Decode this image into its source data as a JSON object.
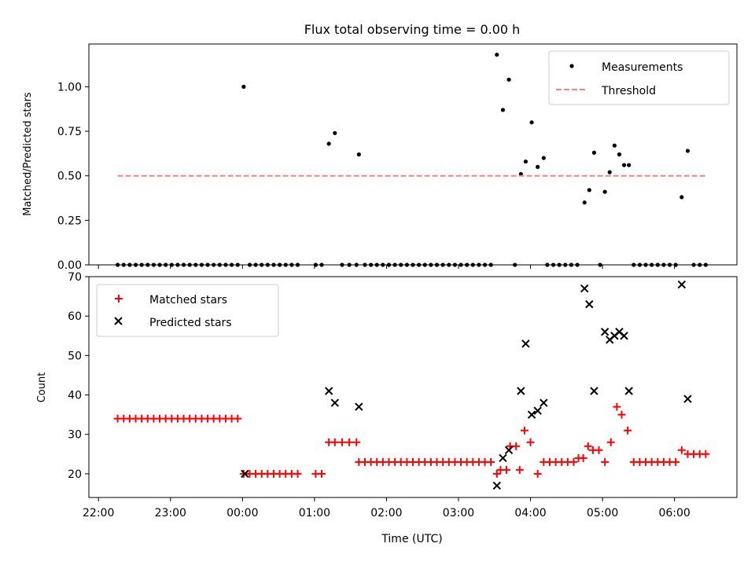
{
  "figure": {
    "title": "Flux total observing time = 0.00 h",
    "xlabel": "Time (UTC)"
  },
  "chart_data": [
    {
      "type": "scatter",
      "panel": "top",
      "ylabel": "Matched/Predicted stars",
      "xlim": [
        "21:52",
        "06:52"
      ],
      "ylim": [
        0,
        1.24
      ],
      "y_ticks": [
        "0.00",
        "0.25",
        "0.50",
        "0.75",
        "1.00"
      ],
      "x_ticks": [
        "22:00",
        "23:00",
        "00:00",
        "01:00",
        "02:00",
        "03:00",
        "04:00",
        "05:00",
        "06:00"
      ],
      "legend_position": "top-right",
      "grid": false,
      "series": [
        {
          "name": "Measurements",
          "color": "#000000",
          "marker": "dot",
          "points": [
            [
              "22:16",
              0
            ],
            [
              "22:21",
              0
            ],
            [
              "22:26",
              0
            ],
            [
              "22:31",
              0
            ],
            [
              "22:36",
              0
            ],
            [
              "22:41",
              0
            ],
            [
              "22:46",
              0
            ],
            [
              "22:51",
              0
            ],
            [
              "22:56",
              0
            ],
            [
              "23:01",
              0
            ],
            [
              "23:06",
              0
            ],
            [
              "23:11",
              0
            ],
            [
              "23:16",
              0
            ],
            [
              "23:21",
              0
            ],
            [
              "23:26",
              0
            ],
            [
              "23:31",
              0
            ],
            [
              "23:36",
              0
            ],
            [
              "23:41",
              0
            ],
            [
              "23:46",
              0
            ],
            [
              "23:51",
              0
            ],
            [
              "23:56",
              0
            ],
            [
              "00:01",
              1.0
            ],
            [
              "00:06",
              0
            ],
            [
              "00:11",
              0
            ],
            [
              "00:16",
              0
            ],
            [
              "00:21",
              0
            ],
            [
              "00:26",
              0
            ],
            [
              "00:31",
              0
            ],
            [
              "00:36",
              0
            ],
            [
              "00:41",
              0
            ],
            [
              "00:46",
              0
            ],
            [
              "01:01",
              0
            ],
            [
              "01:06",
              0
            ],
            [
              "01:12",
              0.68
            ],
            [
              "01:17",
              0.74
            ],
            [
              "01:23",
              0
            ],
            [
              "01:29",
              0
            ],
            [
              "01:35",
              0
            ],
            [
              "01:37",
              0.62
            ],
            [
              "01:42",
              0
            ],
            [
              "01:47",
              0
            ],
            [
              "01:52",
              0
            ],
            [
              "01:57",
              0
            ],
            [
              "02:02",
              0
            ],
            [
              "02:07",
              0
            ],
            [
              "02:12",
              0
            ],
            [
              "02:17",
              0
            ],
            [
              "02:22",
              0
            ],
            [
              "02:27",
              0
            ],
            [
              "02:32",
              0
            ],
            [
              "02:37",
              0
            ],
            [
              "02:42",
              0
            ],
            [
              "02:47",
              0
            ],
            [
              "02:52",
              0
            ],
            [
              "02:57",
              0
            ],
            [
              "03:02",
              0
            ],
            [
              "03:07",
              0
            ],
            [
              "03:12",
              0
            ],
            [
              "03:17",
              0
            ],
            [
              "03:22",
              0
            ],
            [
              "03:27",
              0
            ],
            [
              "03:32",
              1.18
            ],
            [
              "03:37",
              0.87
            ],
            [
              "03:42",
              1.04
            ],
            [
              "03:47",
              0
            ],
            [
              "03:52",
              0.51
            ],
            [
              "03:56",
              0.58
            ],
            [
              "04:01",
              0.8
            ],
            [
              "04:06",
              0.55
            ],
            [
              "04:11",
              0.6
            ],
            [
              "04:14",
              0
            ],
            [
              "04:19",
              0
            ],
            [
              "04:24",
              0
            ],
            [
              "04:29",
              0
            ],
            [
              "04:34",
              0
            ],
            [
              "04:39",
              0
            ],
            [
              "04:45",
              0.35
            ],
            [
              "04:49",
              0.42
            ],
            [
              "04:53",
              0.63
            ],
            [
              "04:58",
              0
            ],
            [
              "05:02",
              0.41
            ],
            [
              "05:06",
              0.52
            ],
            [
              "05:10",
              0.67
            ],
            [
              "05:14",
              0.62
            ],
            [
              "05:18",
              0.56
            ],
            [
              "05:22",
              0.56
            ],
            [
              "05:26",
              0
            ],
            [
              "05:31",
              0
            ],
            [
              "05:36",
              0
            ],
            [
              "05:41",
              0
            ],
            [
              "05:46",
              0
            ],
            [
              "05:51",
              0
            ],
            [
              "05:56",
              0
            ],
            [
              "06:01",
              0
            ],
            [
              "06:06",
              0.38
            ],
            [
              "06:11",
              0.64
            ],
            [
              "06:16",
              0
            ],
            [
              "06:21",
              0
            ],
            [
              "06:26",
              0
            ]
          ]
        },
        {
          "name": "Threshold",
          "color": "#ff8080",
          "style": "dashed-line",
          "points": [
            [
              "22:16",
              0.5
            ],
            [
              "06:26",
              0.5
            ]
          ]
        }
      ]
    },
    {
      "type": "scatter",
      "panel": "bottom",
      "ylabel": "Count",
      "xlim": [
        "21:52",
        "06:52"
      ],
      "ylim": [
        14,
        70
      ],
      "y_ticks": [
        "20",
        "30",
        "40",
        "50",
        "60",
        "70"
      ],
      "x_ticks": [
        "22:00",
        "23:00",
        "00:00",
        "01:00",
        "02:00",
        "03:00",
        "04:00",
        "05:00",
        "06:00"
      ],
      "legend_position": "top-left",
      "grid": false,
      "series": [
        {
          "name": "Matched stars",
          "color": "#ff0000",
          "marker": "plus",
          "points": [
            [
              "22:16",
              34
            ],
            [
              "22:21",
              34
            ],
            [
              "22:26",
              34
            ],
            [
              "22:31",
              34
            ],
            [
              "22:36",
              34
            ],
            [
              "22:41",
              34
            ],
            [
              "22:46",
              34
            ],
            [
              "22:51",
              34
            ],
            [
              "22:56",
              34
            ],
            [
              "23:01",
              34
            ],
            [
              "23:06",
              34
            ],
            [
              "23:11",
              34
            ],
            [
              "23:16",
              34
            ],
            [
              "23:21",
              34
            ],
            [
              "23:26",
              34
            ],
            [
              "23:31",
              34
            ],
            [
              "23:36",
              34
            ],
            [
              "23:41",
              34
            ],
            [
              "23:46",
              34
            ],
            [
              "23:51",
              34
            ],
            [
              "23:56",
              34
            ],
            [
              "00:01",
              20
            ],
            [
              "00:06",
              20
            ],
            [
              "00:11",
              20
            ],
            [
              "00:16",
              20
            ],
            [
              "00:21",
              20
            ],
            [
              "00:26",
              20
            ],
            [
              "00:31",
              20
            ],
            [
              "00:36",
              20
            ],
            [
              "00:41",
              20
            ],
            [
              "00:46",
              20
            ],
            [
              "01:01",
              20
            ],
            [
              "01:06",
              20
            ],
            [
              "01:12",
              28
            ],
            [
              "01:17",
              28
            ],
            [
              "01:23",
              28
            ],
            [
              "01:29",
              28
            ],
            [
              "01:35",
              28
            ],
            [
              "01:37",
              23
            ],
            [
              "01:42",
              23
            ],
            [
              "01:47",
              23
            ],
            [
              "01:52",
              23
            ],
            [
              "01:57",
              23
            ],
            [
              "02:02",
              23
            ],
            [
              "02:07",
              23
            ],
            [
              "02:12",
              23
            ],
            [
              "02:17",
              23
            ],
            [
              "02:22",
              23
            ],
            [
              "02:27",
              23
            ],
            [
              "02:32",
              23
            ],
            [
              "02:37",
              23
            ],
            [
              "02:42",
              23
            ],
            [
              "02:47",
              23
            ],
            [
              "02:52",
              23
            ],
            [
              "02:57",
              23
            ],
            [
              "03:02",
              23
            ],
            [
              "03:07",
              23
            ],
            [
              "03:12",
              23
            ],
            [
              "03:17",
              23
            ],
            [
              "03:22",
              23
            ],
            [
              "03:27",
              23
            ],
            [
              "03:32",
              20
            ],
            [
              "03:35",
              21
            ],
            [
              "03:40",
              21
            ],
            [
              "03:43",
              27
            ],
            [
              "03:48",
              27
            ],
            [
              "03:51",
              21
            ],
            [
              "03:55",
              31
            ],
            [
              "04:00",
              28
            ],
            [
              "04:06",
              20
            ],
            [
              "04:11",
              23
            ],
            [
              "04:16",
              23
            ],
            [
              "04:21",
              23
            ],
            [
              "04:26",
              23
            ],
            [
              "04:31",
              23
            ],
            [
              "04:36",
              23
            ],
            [
              "04:40",
              24
            ],
            [
              "04:44",
              24
            ],
            [
              "04:48",
              27
            ],
            [
              "04:52",
              26
            ],
            [
              "04:57",
              26
            ],
            [
              "05:02",
              23
            ],
            [
              "05:07",
              28
            ],
            [
              "05:12",
              37
            ],
            [
              "05:16",
              35
            ],
            [
              "05:21",
              31
            ],
            [
              "05:26",
              23
            ],
            [
              "05:31",
              23
            ],
            [
              "05:36",
              23
            ],
            [
              "05:41",
              23
            ],
            [
              "05:46",
              23
            ],
            [
              "05:51",
              23
            ],
            [
              "05:56",
              23
            ],
            [
              "06:01",
              23
            ],
            [
              "06:06",
              26
            ],
            [
              "06:11",
              25
            ],
            [
              "06:16",
              25
            ],
            [
              "06:21",
              25
            ],
            [
              "06:26",
              25
            ]
          ]
        },
        {
          "name": "Predicted stars",
          "color": "#000000",
          "marker": "x",
          "points": [
            [
              "00:02",
              20
            ],
            [
              "01:12",
              41
            ],
            [
              "01:17",
              38
            ],
            [
              "01:37",
              37
            ],
            [
              "03:32",
              17
            ],
            [
              "03:37",
              24
            ],
            [
              "03:42",
              26
            ],
            [
              "03:52",
              41
            ],
            [
              "03:56",
              53
            ],
            [
              "04:01",
              35
            ],
            [
              "04:06",
              36
            ],
            [
              "04:11",
              38
            ],
            [
              "04:45",
              67
            ],
            [
              "04:49",
              63
            ],
            [
              "04:53",
              41
            ],
            [
              "05:02",
              56
            ],
            [
              "05:06",
              54
            ],
            [
              "05:10",
              55
            ],
            [
              "05:14",
              56
            ],
            [
              "05:18",
              55
            ],
            [
              "05:22",
              41
            ],
            [
              "06:06",
              68
            ],
            [
              "06:11",
              39
            ]
          ]
        }
      ]
    }
  ]
}
